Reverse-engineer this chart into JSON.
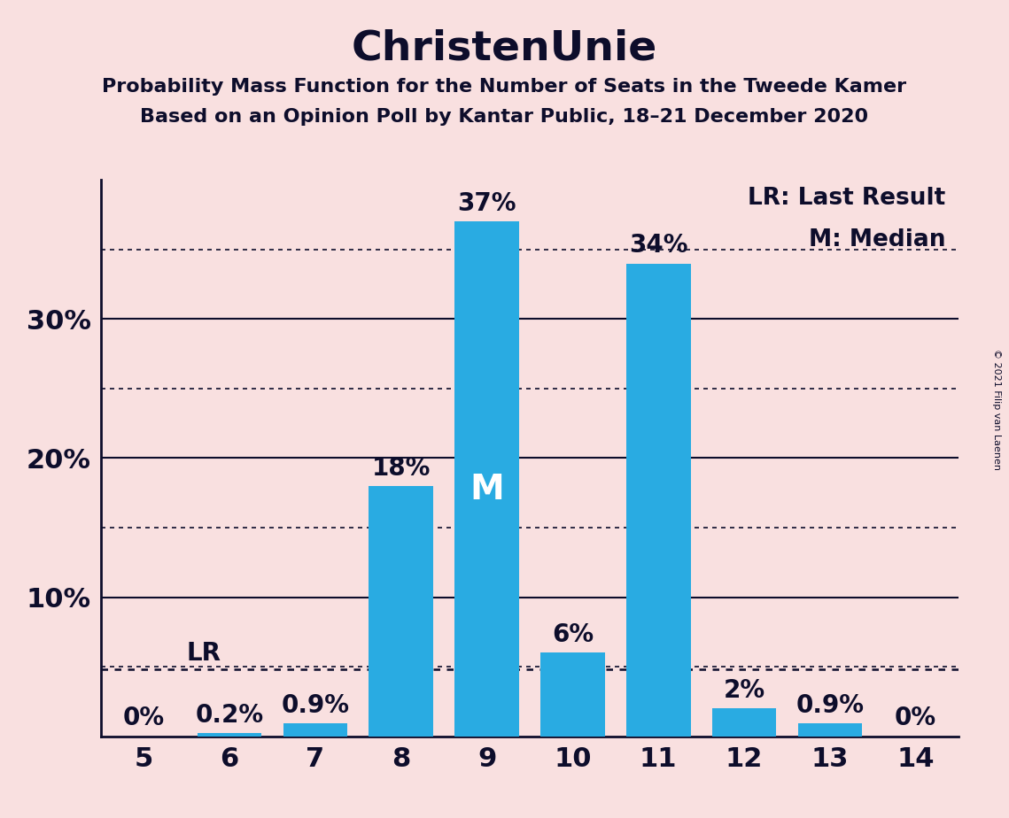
{
  "title": "ChristenUnie",
  "subtitle1": "Probability Mass Function for the Number of Seats in the Tweede Kamer",
  "subtitle2": "Based on an Opinion Poll by Kantar Public, 18–21 December 2020",
  "copyright": "© 2021 Filip van Laenen",
  "legend_lr": "LR: Last Result",
  "legend_m": "M: Median",
  "seats": [
    5,
    6,
    7,
    8,
    9,
    10,
    11,
    12,
    13,
    14
  ],
  "values": [
    0.0,
    0.2,
    0.9,
    18.0,
    37.0,
    6.0,
    34.0,
    2.0,
    0.9,
    0.0
  ],
  "labels": [
    "0%",
    "0.2%",
    "0.9%",
    "18%",
    "37%",
    "6%",
    "34%",
    "2%",
    "0.9%",
    "0%"
  ],
  "bar_color": "#29ABE2",
  "bg_color": "#F9E0E0",
  "text_color": "#0d0d2b",
  "lr_level": 4.8,
  "median_seat": 9,
  "ylim_max": 40,
  "solid_yticks": [
    10,
    20,
    30
  ],
  "dotted_yticks": [
    5,
    15,
    25,
    35
  ],
  "title_fontsize": 34,
  "subtitle_fontsize": 16,
  "tick_fontsize": 22,
  "bar_label_fontsize": 20,
  "legend_fontsize": 19,
  "copyright_fontsize": 8
}
